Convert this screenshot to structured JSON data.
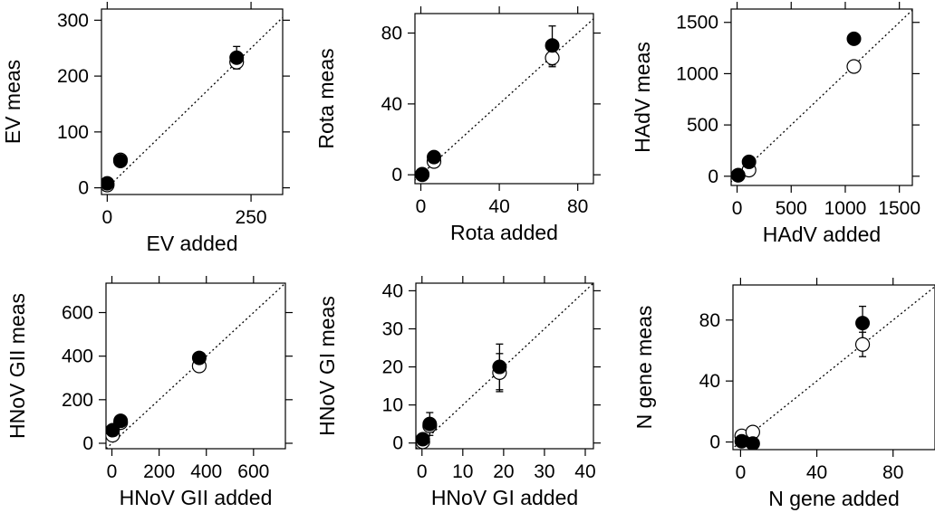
{
  "chart_data": [
    {
      "type": "scatter",
      "title": "",
      "xlabel": "EV added",
      "ylabel": "EV meas",
      "xlim": [
        -10,
        305
      ],
      "ylim": [
        -12,
        320
      ],
      "xticks": [
        0,
        250
      ],
      "yticks": [
        0,
        100,
        200,
        300
      ],
      "identity_line": true,
      "series": [
        {
          "marker": "open",
          "points": [
            {
              "x": 0,
              "y": 5,
              "err": 5
            },
            {
              "x": 23,
              "y": 50,
              "err": 6
            },
            {
              "x": 225,
              "y": 225,
              "err": 12
            }
          ]
        },
        {
          "marker": "filled",
          "points": [
            {
              "x": 0,
              "y": 8,
              "err": 5
            },
            {
              "x": 23,
              "y": 48,
              "err": 6
            },
            {
              "x": 225,
              "y": 233,
              "err": 20
            }
          ]
        }
      ]
    },
    {
      "type": "scatter",
      "title": "",
      "xlabel": "Rota added",
      "ylabel": "Rota meas",
      "xlim": [
        -3,
        88
      ],
      "ylim": [
        -5,
        91
      ],
      "xticks": [
        0,
        40,
        80
      ],
      "yticks": [
        0,
        40,
        80
      ],
      "identity_line": true,
      "series": [
        {
          "marker": "open",
          "points": [
            {
              "x": 0.7,
              "y": 0.3,
              "err": 0
            },
            {
              "x": 6.7,
              "y": 7.5,
              "err": 1.5
            },
            {
              "x": 67,
              "y": 66,
              "err": 5
            }
          ]
        },
        {
          "marker": "filled",
          "points": [
            {
              "x": 0.7,
              "y": 0,
              "err": 0
            },
            {
              "x": 6.7,
              "y": 10,
              "err": 3
            },
            {
              "x": 67,
              "y": 73,
              "err": 11
            }
          ]
        }
      ]
    },
    {
      "type": "scatter",
      "title": "",
      "xlabel": "HAdV added",
      "ylabel": "HAdV meas",
      "xlim": [
        -55,
        1620
      ],
      "ylim": [
        -90,
        1630
      ],
      "xticks": [
        0,
        500,
        1000,
        1500
      ],
      "yticks": [
        0,
        500,
        1000,
        1500
      ],
      "identity_line": true,
      "series": [
        {
          "marker": "open",
          "points": [
            {
              "x": 10,
              "y": 10,
              "err": 0
            },
            {
              "x": 110,
              "y": 60,
              "err": 0
            },
            {
              "x": 1080,
              "y": 1070,
              "err": 0
            }
          ]
        },
        {
          "marker": "filled",
          "points": [
            {
              "x": 10,
              "y": 10,
              "err": 0
            },
            {
              "x": 110,
              "y": 140,
              "err": 0
            },
            {
              "x": 1080,
              "y": 1340,
              "err": 0
            }
          ]
        }
      ]
    },
    {
      "type": "scatter",
      "title": "",
      "xlabel": "HNoV GII added",
      "ylabel": "HNoV GII meas",
      "xlim": [
        -25,
        735
      ],
      "ylim": [
        -25,
        735
      ],
      "xticks": [
        0,
        200,
        400,
        600
      ],
      "yticks": [
        0,
        200,
        400,
        600
      ],
      "identity_line": true,
      "series": [
        {
          "marker": "open",
          "points": [
            {
              "x": 3,
              "y": 37,
              "err": 0
            },
            {
              "x": 37,
              "y": 95,
              "err": 0
            },
            {
              "x": 370,
              "y": 355,
              "err": 0
            }
          ]
        },
        {
          "marker": "filled",
          "points": [
            {
              "x": 3,
              "y": 60,
              "err": 0
            },
            {
              "x": 37,
              "y": 103,
              "err": 0
            },
            {
              "x": 370,
              "y": 392,
              "err": 0
            }
          ]
        }
      ]
    },
    {
      "type": "scatter",
      "title": "",
      "xlabel": "HNoV GI added",
      "ylabel": "HNoV GI meas",
      "xlim": [
        -1.5,
        42
      ],
      "ylim": [
        -1.5,
        42
      ],
      "xticks": [
        0,
        10,
        20,
        30,
        40
      ],
      "yticks": [
        0,
        10,
        20,
        30,
        40
      ],
      "identity_line": true,
      "series": [
        {
          "marker": "open",
          "points": [
            {
              "x": 0.2,
              "y": 0.3,
              "err": 0
            },
            {
              "x": 1.9,
              "y": 4.5,
              "err": 1.5
            },
            {
              "x": 19,
              "y": 18.5,
              "err": 5
            }
          ]
        },
        {
          "marker": "filled",
          "points": [
            {
              "x": 0.2,
              "y": 1.0,
              "err": 0
            },
            {
              "x": 1.9,
              "y": 5.0,
              "err": 3
            },
            {
              "x": 19,
              "y": 20,
              "err": 6
            }
          ]
        }
      ]
    },
    {
      "type": "scatter",
      "title": "",
      "xlabel": "N gene added",
      "ylabel": "N gene meas",
      "xlim": [
        -4,
        102
      ],
      "ylim": [
        -5,
        103
      ],
      "xticks": [
        0,
        40,
        80
      ],
      "yticks": [
        0,
        40,
        80
      ],
      "identity_line": true,
      "series": [
        {
          "marker": "open",
          "points": [
            {
              "x": 0.6,
              "y": 4,
              "err": 0
            },
            {
              "x": 6.4,
              "y": 6.5,
              "err": 0
            },
            {
              "x": 64,
              "y": 64,
              "err": 8
            }
          ]
        },
        {
          "marker": "filled",
          "points": [
            {
              "x": 0.6,
              "y": 0.5,
              "err": 0
            },
            {
              "x": 6.4,
              "y": -1,
              "err": 0
            },
            {
              "x": 64,
              "y": 78,
              "err": 11
            }
          ]
        }
      ]
    }
  ]
}
